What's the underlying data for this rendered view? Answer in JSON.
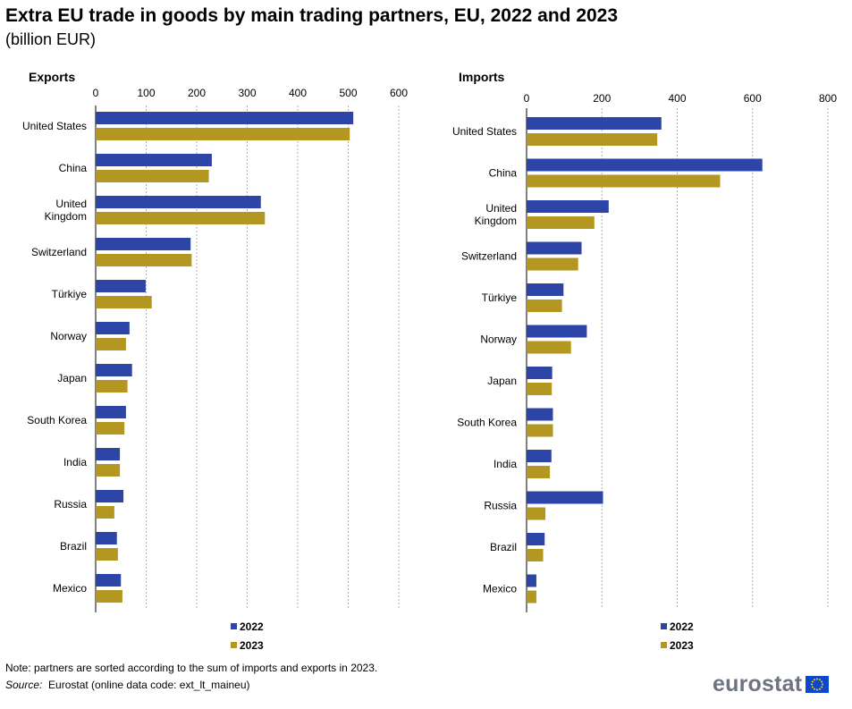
{
  "title": "Extra EU trade in goods by main trading partners, EU, 2022 and 2023",
  "subtitle": "(billion EUR)",
  "note": "Note: partners are sorted according to the sum of imports and exports in 2023.",
  "source_label": "Source:",
  "source_text": "Eurostat (online data code: ext_lt_maineu)",
  "logo_text": "eurostat",
  "colors": {
    "series_2022": "#2e45a8",
    "series_2023": "#b39720",
    "grid": "#b0b0b0",
    "axis": "#000000"
  },
  "chart_data": [
    {
      "type": "bar",
      "orientation": "horizontal",
      "title": "Exports",
      "categories": [
        "United States",
        "China",
        "United Kingdom",
        "Switzerland",
        "Türkiye",
        "Norway",
        "Japan",
        "South Korea",
        "India",
        "Russia",
        "Brazil",
        "Mexico"
      ],
      "category_labels": [
        [
          "United States"
        ],
        [
          "China"
        ],
        [
          "United",
          "Kingdom"
        ],
        [
          "Switzerland"
        ],
        [
          "Türkiye"
        ],
        [
          "Norway"
        ],
        [
          "Japan"
        ],
        [
          "South Korea"
        ],
        [
          "India"
        ],
        [
          "Russia"
        ],
        [
          "Brazil"
        ],
        [
          "Mexico"
        ]
      ],
      "series": [
        {
          "name": "2022",
          "values": [
            510,
            230,
            327,
            188,
            99,
            67,
            72,
            60,
            48,
            55,
            42,
            50
          ]
        },
        {
          "name": "2023",
          "values": [
            503,
            224,
            335,
            190,
            111,
            60,
            63,
            57,
            48,
            37,
            44,
            53
          ]
        }
      ],
      "xlim": [
        0,
        600
      ],
      "ticks": [
        0,
        100,
        200,
        300,
        400,
        500,
        600
      ],
      "grid": true,
      "legend": "bottom"
    },
    {
      "type": "bar",
      "orientation": "horizontal",
      "title": "Imports",
      "categories": [
        "United States",
        "China",
        "United Kingdom",
        "Switzerland",
        "Türkiye",
        "Norway",
        "Japan",
        "South Korea",
        "India",
        "Russia",
        "Brazil",
        "Mexico"
      ],
      "category_labels": [
        [
          "United States"
        ],
        [
          "China"
        ],
        [
          "United",
          "Kingdom"
        ],
        [
          "Switzerland"
        ],
        [
          "Türkiye"
        ],
        [
          "Norway"
        ],
        [
          "Japan"
        ],
        [
          "South Korea"
        ],
        [
          "India"
        ],
        [
          "Russia"
        ],
        [
          "Brazil"
        ],
        [
          "Mexico"
        ]
      ],
      "series": [
        {
          "name": "2022",
          "values": [
            358,
            626,
            218,
            146,
            98,
            160,
            68,
            70,
            66,
            203,
            48,
            26
          ]
        },
        {
          "name": "2023",
          "values": [
            347,
            514,
            180,
            137,
            94,
            118,
            67,
            70,
            62,
            50,
            44,
            26
          ]
        }
      ],
      "xlim": [
        0,
        800
      ],
      "ticks": [
        0,
        200,
        400,
        600,
        800
      ],
      "grid": true,
      "legend": "bottom"
    }
  ]
}
